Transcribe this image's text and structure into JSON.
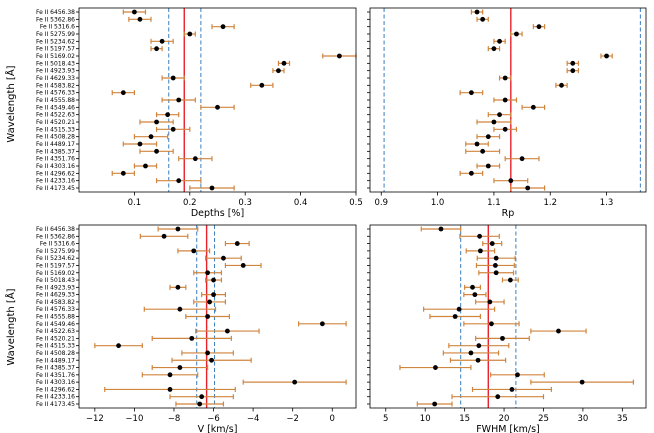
{
  "figure": {
    "ylabel": "Wavelength [Å]"
  },
  "lines": [
    "Fe II 6456.38",
    "Fe II 5362.86",
    "Fe II 5316.6",
    "Fe II 5275.99",
    "Fe II 5234.62",
    "Fe II 5197.57",
    "Fe II 5169.02",
    "Fe II 5018.43",
    "Fe II 4923.93",
    "Fe II 4629.33",
    "Fe II 4583.82",
    "Fe II 4576.33",
    "Fe II 4555.88",
    "Fe II 4549.46",
    "Fe II 4522.63",
    "Fe II 4520.21",
    "Fe II 4515.33",
    "Fe II 4508.28",
    "Fe II 4489.17",
    "Fe II 4385.37",
    "Fe II 4351.76",
    "Fe II 4303.16",
    "Fe II 4296.62",
    "Fe II 4233.16",
    "Fe II 4173.45"
  ],
  "colors": {
    "point": "#000000",
    "errorbar": "#d0853e",
    "mean": "#e8212b",
    "band": "#3a7ebf"
  },
  "chart_data": [
    {
      "type": "scatter",
      "panel": "depths",
      "xlabel": "Depths [%]",
      "xlim": [
        0.0,
        0.5
      ],
      "xticks": [
        0.1,
        0.2,
        0.3,
        0.4,
        0.5
      ],
      "tick_labels": [
        "0.1",
        "0.2",
        "0.3",
        "0.4",
        "0.5"
      ],
      "show_ylabels": true,
      "values": [
        0.1,
        0.11,
        0.26,
        0.2,
        0.15,
        0.14,
        0.47,
        0.37,
        0.36,
        0.17,
        0.33,
        0.08,
        0.18,
        0.25,
        0.16,
        0.14,
        0.17,
        0.13,
        0.11,
        0.14,
        0.21,
        0.12,
        0.08,
        0.18,
        0.24
      ],
      "errors": [
        0.02,
        0.02,
        0.02,
        0.01,
        0.02,
        0.01,
        0.03,
        0.01,
        0.01,
        0.02,
        0.02,
        0.02,
        0.03,
        0.03,
        0.02,
        0.03,
        0.03,
        0.03,
        0.03,
        0.03,
        0.03,
        0.02,
        0.02,
        0.04,
        0.04
      ],
      "mean": 0.19,
      "band": [
        0.162,
        0.22
      ]
    },
    {
      "type": "scatter",
      "panel": "rp",
      "xlabel": "Rp",
      "xlim": [
        0.88,
        1.37
      ],
      "xticks": [
        0.9,
        1.0,
        1.1,
        1.2,
        1.3
      ],
      "tick_labels": [
        "0.9",
        "1.0",
        "1.1",
        "1.2",
        "1.3"
      ],
      "show_ylabels": false,
      "values": [
        1.07,
        1.08,
        1.18,
        1.14,
        1.11,
        1.1,
        1.3,
        1.24,
        1.24,
        1.12,
        1.22,
        1.06,
        1.12,
        1.17,
        1.11,
        1.1,
        1.12,
        1.09,
        1.07,
        1.08,
        1.15,
        1.09,
        1.06,
        1.13,
        1.16
      ],
      "errors": [
        0.01,
        0.01,
        0.01,
        0.01,
        0.01,
        0.01,
        0.01,
        0.01,
        0.01,
        0.01,
        0.01,
        0.02,
        0.02,
        0.02,
        0.02,
        0.03,
        0.02,
        0.02,
        0.02,
        0.03,
        0.03,
        0.02,
        0.02,
        0.03,
        0.03
      ],
      "mean": 1.13,
      "band": [
        0.905,
        1.36
      ]
    },
    {
      "type": "scatter",
      "panel": "velocity",
      "xlabel": "V [km/s]",
      "xlim": [
        -12.8,
        1.2
      ],
      "xticks": [
        -12,
        -10,
        -8,
        -6,
        -4,
        -2,
        0
      ],
      "tick_labels": [
        "−12",
        "−10",
        "−8",
        "−6",
        "−4",
        "−2",
        "0"
      ],
      "show_ylabels": true,
      "values": [
        -7.8,
        -8.5,
        -4.8,
        -7.0,
        -5.5,
        -4.5,
        -6.3,
        -6.0,
        -7.8,
        -6.0,
        -6.2,
        -7.7,
        -6.3,
        -0.5,
        -5.3,
        -7.1,
        -10.8,
        -6.3,
        -6.1,
        -7.7,
        -8.2,
        -1.9,
        -8.2,
        -6.6,
        -6.7
      ],
      "errors": [
        1.0,
        1.2,
        0.6,
        0.8,
        0.9,
        0.9,
        0.7,
        0.4,
        0.4,
        0.6,
        0.8,
        1.8,
        1.1,
        1.2,
        1.6,
        2.0,
        1.2,
        1.3,
        2.0,
        1.4,
        1.4,
        2.6,
        3.3,
        1.6,
        1.2
      ],
      "mean": -6.35,
      "band": [
        -6.85,
        -5.95
      ]
    },
    {
      "type": "scatter",
      "panel": "fwhm",
      "xlabel": "FWHM [km/s]",
      "xlim": [
        3.0,
        38.0
      ],
      "xticks": [
        5,
        10,
        15,
        20,
        25,
        30,
        35
      ],
      "tick_labels": [
        "5",
        "10",
        "15",
        "20",
        "25",
        "30",
        "35"
      ],
      "show_ylabels": false,
      "values": [
        12.0,
        16.9,
        18.5,
        17.0,
        19.0,
        18.9,
        19.0,
        20.8,
        16.0,
        16.3,
        18.2,
        14.3,
        13.8,
        18.4,
        26.9,
        19.8,
        16.8,
        15.8,
        16.7,
        11.3,
        21.7,
        29.9,
        21.0,
        19.2,
        11.2
      ],
      "errors": [
        2.5,
        2.5,
        1.2,
        1.8,
        2.4,
        2.4,
        2.2,
        1.0,
        1.0,
        1.4,
        1.8,
        4.5,
        3.2,
        3.5,
        3.5,
        3.4,
        3.8,
        3.5,
        3.5,
        4.5,
        3.4,
        6.5,
        5.0,
        5.8,
        2.2
      ],
      "mean": 18.0,
      "band": [
        14.5,
        21.5
      ]
    }
  ]
}
